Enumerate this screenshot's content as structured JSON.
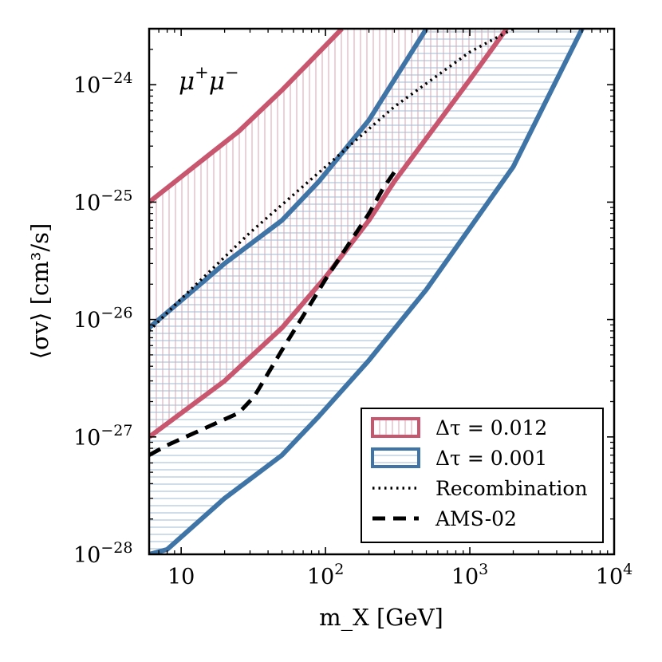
{
  "chart_data": {
    "type": "line",
    "title": "",
    "xlabel": "m_X [GeV]",
    "ylabel": "⟨σv⟩ [cm³/s]",
    "xscale": "log",
    "yscale": "log",
    "xlim": [
      6,
      10000
    ],
    "ylim": [
      1e-28,
      3e-24
    ],
    "x_ticks": [
      {
        "value": 10,
        "mant": "10",
        "exp": ""
      },
      {
        "value": 100,
        "mant": "10",
        "exp": "2"
      },
      {
        "value": 1000,
        "mant": "10",
        "exp": "3"
      },
      {
        "value": 10000,
        "mant": "10",
        "exp": "4"
      }
    ],
    "y_ticks": [
      {
        "value": 1e-28,
        "mant": "10",
        "exp": "−28"
      },
      {
        "value": 1e-27,
        "mant": "10",
        "exp": "−27"
      },
      {
        "value": 1e-26,
        "mant": "10",
        "exp": "−26"
      },
      {
        "value": 1e-25,
        "mant": "10",
        "exp": "−25"
      },
      {
        "value": 1e-24,
        "mant": "10",
        "exp": "−24"
      }
    ],
    "annotation": {
      "base": "μ",
      "sup": "+",
      "base2": "μ",
      "sup2": "−",
      "placement": "top-left"
    },
    "legend_placement": "lower-right",
    "bands": [
      {
        "name": "Δτ = 0.012",
        "color": "#c8566e",
        "hatch": "vertical",
        "upper": {
          "x": [
            6,
            25,
            50,
            130
          ],
          "y": [
            1e-25,
            4e-25,
            9e-25,
            3e-24
          ]
        },
        "lower": {
          "x": [
            6,
            20,
            50,
            100,
            200,
            300,
            500,
            1000,
            1800
          ],
          "y": [
            1e-27,
            3e-27,
            8.5e-27,
            2.3e-26,
            7e-26,
            1.5e-25,
            3.5e-25,
            1.1e-24,
            3e-24
          ]
        }
      },
      {
        "name": "Δτ = 0.001",
        "color": "#3f74a6",
        "hatch": "horizontal",
        "upper": {
          "x": [
            6,
            20,
            50,
            90,
            200,
            500
          ],
          "y": [
            8.5e-27,
            3e-26,
            7e-26,
            1.5e-25,
            5e-25,
            3e-24
          ]
        },
        "lower": {
          "x": [
            6,
            8,
            20,
            50,
            90,
            200,
            500,
            1000,
            2000,
            6000
          ],
          "y": [
            1e-28,
            1.1e-28,
            3e-28,
            7e-28,
            1.5e-27,
            4.5e-27,
            1.8e-26,
            6e-26,
            2e-25,
            3e-24
          ]
        }
      }
    ],
    "series": [
      {
        "name": "Recombination",
        "style": "dotted",
        "color": "#000000",
        "x": [
          6,
          10,
          30,
          100,
          300,
          1000,
          2000
        ],
        "y": [
          8e-27,
          1.5e-26,
          5.5e-26,
          2e-25,
          6.5e-25,
          1.9e-24,
          3e-24
        ]
      },
      {
        "name": "AMS-02",
        "style": "dashed",
        "color": "#000000",
        "x": [
          6,
          8,
          25,
          32,
          50,
          80,
          100,
          200,
          250,
          300
        ],
        "y": [
          7e-28,
          8.5e-28,
          1.6e-27,
          2.2e-27,
          5.5e-27,
          1.4e-26,
          2.2e-26,
          8e-26,
          1.3e-25,
          1.8e-25
        ]
      }
    ],
    "legend": [
      {
        "label": "Δτ = 0.012",
        "kind": "patch-vertical",
        "color": "#c8566e"
      },
      {
        "label": "Δτ = 0.001",
        "kind": "patch-horizontal",
        "color": "#3f74a6"
      },
      {
        "label": "Recombination",
        "kind": "dotted",
        "color": "#000000"
      },
      {
        "label": "AMS-02",
        "kind": "dashed",
        "color": "#000000"
      }
    ]
  }
}
